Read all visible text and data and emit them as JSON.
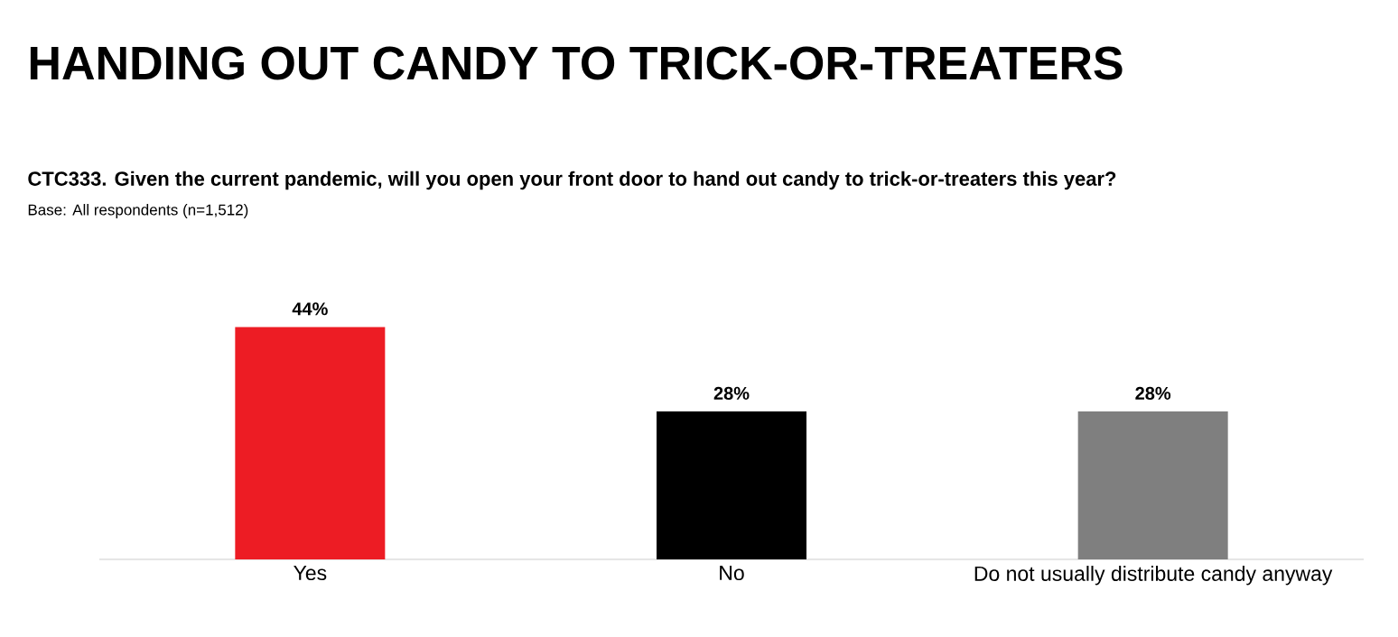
{
  "chart_data": {
    "type": "bar",
    "title": "HANDING OUT CANDY TO TRICK-OR-TREATERS",
    "subtitle": "CTC333. Given the current pandemic, will you open your front door to hand out candy to trick-or-treaters this year?",
    "annotations": [
      "Base: All respondents (n=1,512)"
    ],
    "categories": [
      "Yes",
      "No",
      "Do not usually distribute candy anyway"
    ],
    "values": [
      44,
      28,
      28
    ],
    "value_labels": [
      "44%",
      "28%",
      "28%"
    ],
    "colors": [
      "#ed1c24",
      "#000000",
      "#7f7f7f"
    ]
  }
}
